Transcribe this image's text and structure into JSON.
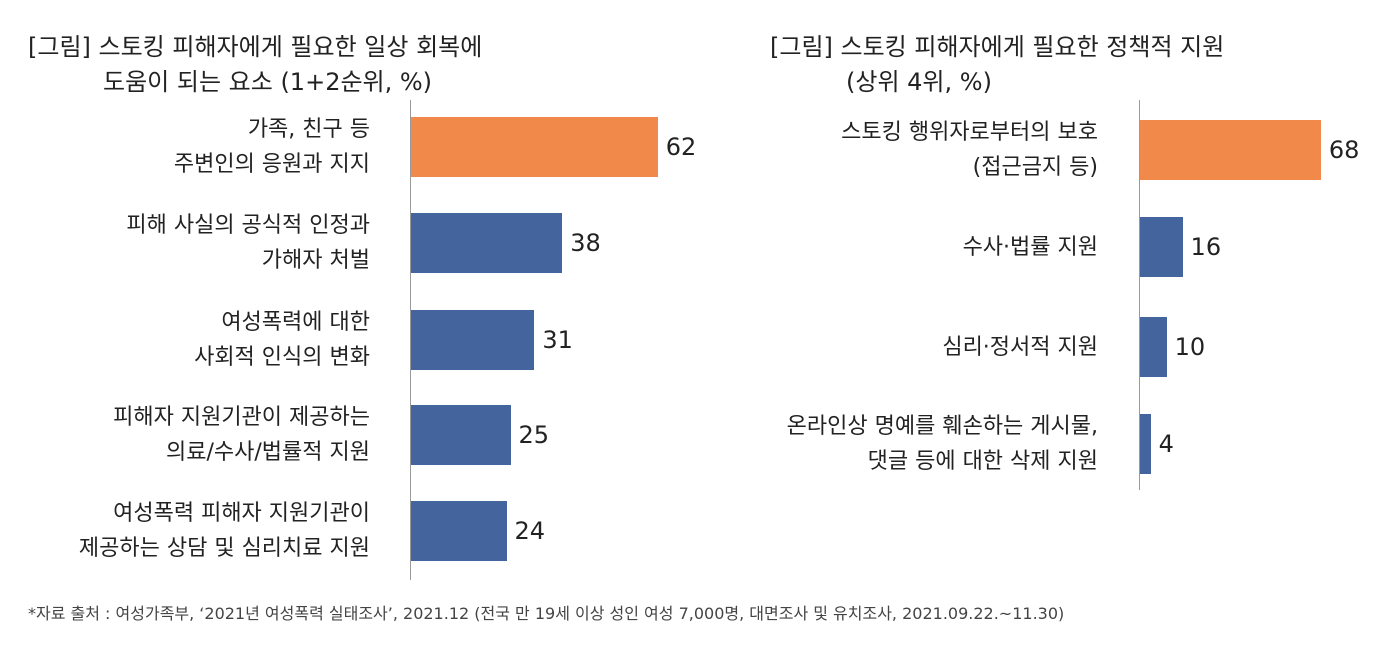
{
  "chart_data": [
    {
      "type": "bar",
      "orientation": "horizontal",
      "title_lines": [
        "[그림] 스토킹 피해자에게 필요한 일상 회복에",
        "도움이 되는 요소 (1+2순위, %)"
      ],
      "categories": [
        [
          "가족, 친구 등",
          "주변인의 응원과 지지"
        ],
        [
          "피해 사실의 공식적 인정과",
          "가해자 처벌"
        ],
        [
          "여성폭력에 대한",
          "사회적 인식의 변화"
        ],
        [
          "피해자 지원기관이 제공하는",
          "의료/수사/법률적 지원"
        ],
        [
          "여성폭력 피해자 지원기관이",
          "제공하는 상담 및 심리치료 지원"
        ]
      ],
      "values": [
        62,
        38,
        31,
        25,
        24
      ],
      "bar_colors": [
        "#F0894A",
        "#44649E",
        "#44649E",
        "#44649E",
        "#44649E"
      ],
      "xlim": [
        0,
        70
      ],
      "grid": false
    },
    {
      "type": "bar",
      "orientation": "horizontal",
      "title_lines": [
        "[그림] 스토킹 피해자에게 필요한 정책적 지원",
        "(상위 4위, %)"
      ],
      "categories": [
        [
          "스토킹 행위자로부터의 보호",
          "(접근금지 등)"
        ],
        [
          "수사·법률 지원"
        ],
        [
          "심리·정서적 지원"
        ],
        [
          "온라인상 명예를 훼손하는 게시물,",
          "댓글 등에 대한 삭제 지원"
        ]
      ],
      "values": [
        68,
        16,
        10,
        4
      ],
      "bar_colors": [
        "#F0894A",
        "#44649E",
        "#44649E",
        "#44649E"
      ],
      "xlim": [
        0,
        70
      ],
      "grid": false
    }
  ],
  "source_note": "*자료 출처 : 여성가족부, ‘2021년 여성폭력 실태조사’, 2021.12 (전국 만 19세 이상 성인 여성 7,000명, 대면조사 및 유치조사, 2021.09.22.~11.30)"
}
